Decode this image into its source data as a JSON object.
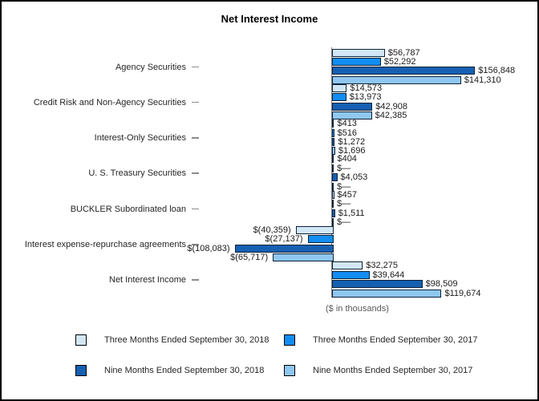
{
  "title": "Net Interest Income",
  "axis_note": "($ in thousands)",
  "colors": {
    "bar_border": "#0d2238",
    "axis_line": "#7f7f7f",
    "tick": "#8c8c8c",
    "frame_border": "#000000"
  },
  "chart_data": {
    "type": "bar",
    "orientation": "horizontal",
    "title": "Net Interest Income",
    "units_note": "($ in thousands)",
    "value_axis_visible": false,
    "grid": false,
    "legend_position": "bottom",
    "categories": [
      "Agency Securities",
      "Credit Risk and Non-Agency Securities",
      "Interest-Only Securities",
      "U. S. Treasury Securities",
      "BUCKLER Subordinated loan",
      "Interest expense-repurchase agreements",
      "Net Interest Income"
    ],
    "series": [
      {
        "name": "Three Months Ended September 30, 2018",
        "color": "#d2e7f6",
        "values": [
          56787,
          14573,
          413,
          404,
          457,
          -40359,
          32275
        ],
        "labels": [
          "$56,787",
          "$14,573",
          "$413",
          "$404",
          "$457",
          "$(40,359)",
          "$32,275"
        ]
      },
      {
        "name": "Three Months Ended September 30, 2017",
        "color": "#128df2",
        "values": [
          52292,
          13973,
          516,
          0,
          0,
          -27137,
          39644
        ],
        "labels": [
          "$52,292",
          "$13,973",
          "$516",
          "$—",
          "$—",
          "$(27,137)",
          "$39,644"
        ]
      },
      {
        "name": "Nine Months Ended September 30, 2018",
        "color": "#1660b2",
        "values": [
          156848,
          42908,
          1272,
          4053,
          1511,
          -108083,
          98509
        ],
        "labels": [
          "$156,848",
          "$42,908",
          "$1,272",
          "$4,053",
          "$1,511",
          "$(108,083)",
          "$98,509"
        ]
      },
      {
        "name": "Nine Months Ended September 30, 2017",
        "color": "#8fc7f0",
        "values": [
          141310,
          42385,
          1696,
          0,
          0,
          -65717,
          119674
        ],
        "labels": [
          "$141,310",
          "$42,385",
          "$1,696",
          "$—",
          "$—",
          "$(65,717)",
          "$119,674"
        ]
      }
    ]
  },
  "legend": {
    "items": [
      {
        "series": 0,
        "row": 0,
        "col": 0,
        "label": "Three Months Ended September 30, 2018"
      },
      {
        "series": 1,
        "row": 0,
        "col": 1,
        "label": "Three Months Ended September 30, 2017"
      },
      {
        "series": 2,
        "row": 1,
        "col": 0,
        "label": "Nine Months Ended September 30, 2018"
      },
      {
        "series": 3,
        "row": 1,
        "col": 1,
        "label": "Nine Months Ended September 30, 2017"
      }
    ]
  }
}
